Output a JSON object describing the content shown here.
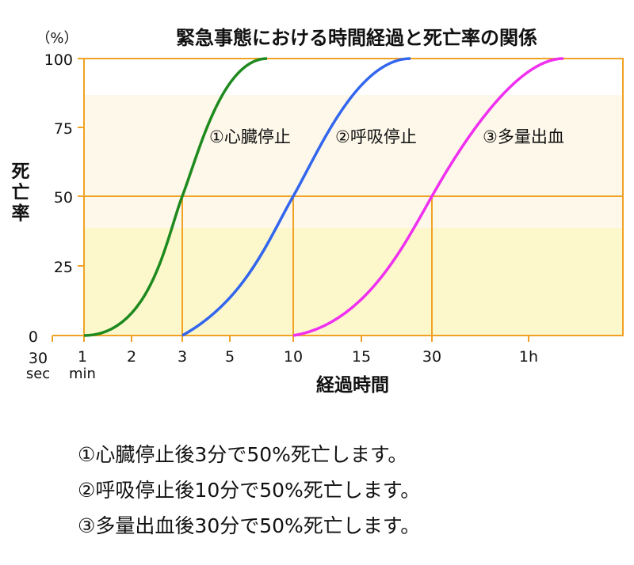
{
  "chart_data": {
    "type": "line",
    "title": "緊急事態における時間経過と死亡率の関係",
    "ylabel": "死亡率",
    "yunit": "（%）",
    "xlabel": "経過時間",
    "ylim": [
      0,
      100
    ],
    "yticks": [
      0,
      25,
      50,
      75,
      100
    ],
    "xticks": [
      "30 sec",
      "1 min",
      "2",
      "3",
      "5",
      "10",
      "15",
      "30",
      "1h"
    ],
    "colors": {
      "frame": "#f0a224",
      "band_light": "#fdf8ea",
      "band_yellow": "#fcf8cc",
      "green": "#1e8a1e",
      "blue": "#3366ee",
      "magenta": "#f030f0"
    },
    "series": [
      {
        "name": "①心臓停止",
        "x_minutes": [
          1,
          3,
          7.5
        ],
        "y": [
          0,
          50,
          100
        ]
      },
      {
        "name": "②呼吸停止",
        "x_minutes": [
          3,
          10,
          25
        ],
        "y": [
          0,
          50,
          100
        ]
      },
      {
        "name": "③多量出血",
        "x_minutes": [
          10,
          30,
          75
        ],
        "y": [
          0,
          50,
          100
        ]
      }
    ],
    "markers": [
      {
        "x": "3",
        "y": 50
      },
      {
        "x": "10",
        "y": 50
      },
      {
        "x": "30",
        "y": 50
      }
    ]
  },
  "notes": [
    "①心臓停止後3分で50%死亡します。",
    "②呼吸停止後10分で50%死亡します。",
    "③多量出血後30分で50%死亡します。"
  ]
}
